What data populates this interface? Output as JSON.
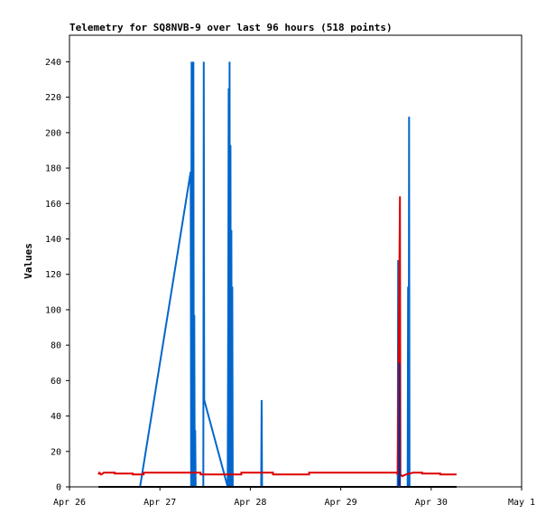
{
  "chart_data": {
    "type": "line",
    "title": "Telemetry for SQ8NVB-9 over last 96 hours (518 points)",
    "xlabel": "",
    "ylabel": "Values",
    "x_ticks": [
      "Apr 26",
      "Apr 27",
      "Apr 28",
      "Apr 29",
      "Apr 30",
      "May 1"
    ],
    "xlim": [
      0,
      5
    ],
    "ylim": [
      0,
      255
    ],
    "y_ticks": [
      0,
      20,
      40,
      60,
      80,
      100,
      120,
      140,
      160,
      180,
      200,
      220,
      240
    ],
    "grid": false,
    "legend": "none",
    "series": [
      {
        "color": "#0066cc",
        "points": [
          [
            0.78,
            0
          ],
          [
            1.34,
            178
          ],
          [
            1.345,
            0
          ],
          [
            1.35,
            240
          ],
          [
            1.355,
            0
          ],
          [
            1.36,
            208
          ],
          [
            1.365,
            0
          ],
          [
            1.37,
            240
          ],
          [
            1.375,
            0
          ],
          [
            1.38,
            97
          ],
          [
            1.385,
            0
          ],
          [
            1.39,
            32
          ],
          [
            1.395,
            0
          ],
          [
            1.48,
            0
          ],
          [
            1.485,
            240
          ],
          [
            1.49,
            49
          ],
          [
            1.75,
            0
          ],
          [
            1.755,
            97
          ],
          [
            1.76,
            225
          ],
          [
            1.765,
            0
          ],
          [
            1.77,
            240
          ],
          [
            1.775,
            0
          ],
          [
            1.78,
            193
          ],
          [
            1.785,
            0
          ],
          [
            1.79,
            145
          ],
          [
            1.795,
            0
          ],
          [
            1.8,
            113
          ],
          [
            1.805,
            0
          ],
          [
            2.12,
            0
          ],
          [
            2.125,
            49
          ],
          [
            2.13,
            0
          ],
          [
            3.63,
            0
          ],
          [
            3.635,
            128
          ],
          [
            3.64,
            0
          ],
          [
            3.66,
            0
          ],
          [
            3.665,
            0
          ],
          [
            3.74,
            0
          ],
          [
            3.745,
            113
          ],
          [
            3.75,
            0
          ],
          [
            3.755,
            209
          ],
          [
            3.76,
            0
          ]
        ]
      },
      {
        "color": "#dd0000",
        "points": [
          [
            0.32,
            7
          ],
          [
            0.33,
            8
          ],
          [
            0.35,
            7
          ],
          [
            0.38,
            8
          ],
          [
            0.5,
            8
          ],
          [
            0.5,
            7.5
          ],
          [
            0.7,
            7.5
          ],
          [
            0.7,
            7
          ],
          [
            0.82,
            7
          ],
          [
            0.82,
            8
          ],
          [
            1.45,
            8
          ],
          [
            1.45,
            7
          ],
          [
            1.9,
            7
          ],
          [
            1.9,
            8
          ],
          [
            2.25,
            8
          ],
          [
            2.25,
            7
          ],
          [
            2.65,
            7
          ],
          [
            2.65,
            8
          ],
          [
            3.62,
            8
          ],
          [
            3.63,
            7
          ],
          [
            3.655,
            164
          ],
          [
            3.66,
            7
          ],
          [
            3.68,
            6
          ],
          [
            3.72,
            7
          ],
          [
            3.8,
            8
          ],
          [
            3.9,
            8
          ],
          [
            3.9,
            7.5
          ],
          [
            4.1,
            7.5
          ],
          [
            4.1,
            7
          ],
          [
            4.28,
            7
          ]
        ]
      },
      {
        "color": "#000000",
        "points": [
          [
            0.32,
            0
          ],
          [
            4.28,
            0
          ]
        ]
      },
      {
        "color": "#1a2a8a",
        "points": [
          [
            3.645,
            0
          ],
          [
            3.65,
            70
          ],
          [
            3.655,
            0
          ]
        ]
      }
    ]
  }
}
